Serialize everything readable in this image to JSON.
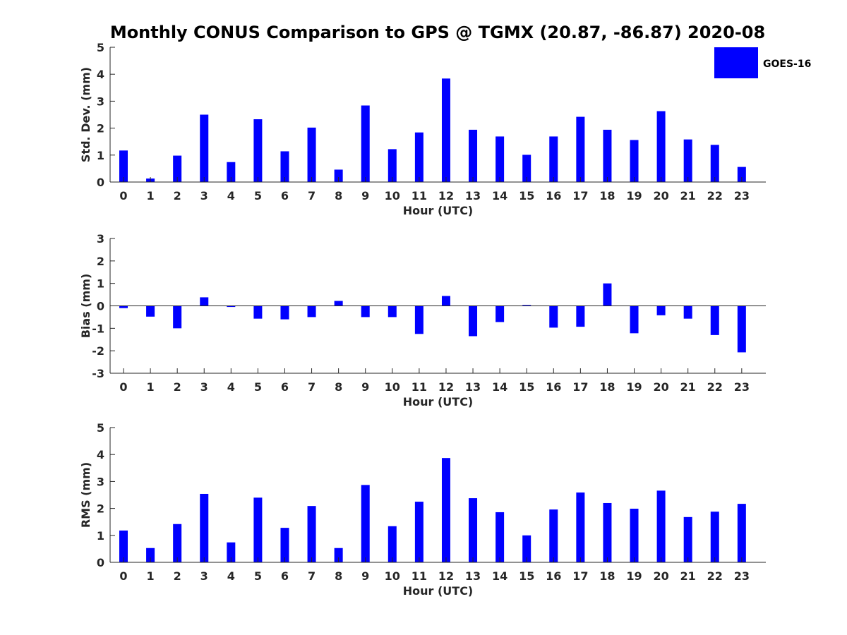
{
  "title": "Monthly CONUS Comparison to GPS @ TGMX (20.87, -86.87) 2020-08",
  "legend": {
    "label": "GOES-16",
    "color": "#0000ff",
    "placement": "top-right"
  },
  "chart_data": [
    {
      "type": "bar",
      "categories": [
        "0",
        "1",
        "2",
        "3",
        "4",
        "5",
        "6",
        "7",
        "8",
        "9",
        "10",
        "11",
        "12",
        "13",
        "14",
        "15",
        "16",
        "17",
        "18",
        "19",
        "20",
        "21",
        "22",
        "23"
      ],
      "values": [
        1.17,
        0.13,
        0.98,
        2.5,
        0.74,
        2.33,
        1.14,
        2.02,
        0.46,
        2.84,
        1.22,
        1.84,
        3.84,
        1.94,
        1.69,
        1.01,
        1.69,
        2.42,
        1.94,
        1.56,
        2.63,
        1.58,
        1.38,
        0.56
      ],
      "xlabel": "Hour (UTC)",
      "ylabel": "Std. Dev. (mm)",
      "ylim": [
        0,
        5
      ],
      "yticks": [
        "0",
        "1",
        "2",
        "3",
        "4",
        "5"
      ],
      "grid": false
    },
    {
      "type": "bar",
      "categories": [
        "0",
        "1",
        "2",
        "3",
        "4",
        "5",
        "6",
        "7",
        "8",
        "9",
        "10",
        "11",
        "12",
        "13",
        "14",
        "15",
        "16",
        "17",
        "18",
        "19",
        "20",
        "21",
        "22",
        "23"
      ],
      "values": [
        -0.1,
        -0.48,
        -1.0,
        0.38,
        -0.05,
        -0.57,
        -0.6,
        -0.5,
        0.22,
        -0.5,
        -0.5,
        -1.25,
        0.44,
        -1.35,
        -0.72,
        0.04,
        -0.97,
        -0.93,
        1.0,
        -1.22,
        -0.42,
        -0.57,
        -1.3,
        -2.07
      ],
      "xlabel": "Hour (UTC)",
      "ylabel": "Bias (mm)",
      "ylim": [
        -3,
        3
      ],
      "yticks": [
        "-3",
        "-2",
        "-1",
        "0",
        "1",
        "2",
        "3"
      ],
      "grid": false
    },
    {
      "type": "bar",
      "categories": [
        "0",
        "1",
        "2",
        "3",
        "4",
        "5",
        "6",
        "7",
        "8",
        "9",
        "10",
        "11",
        "12",
        "13",
        "14",
        "15",
        "16",
        "17",
        "18",
        "19",
        "20",
        "21",
        "22",
        "23"
      ],
      "values": [
        1.18,
        0.53,
        1.42,
        2.54,
        0.74,
        2.4,
        1.28,
        2.09,
        0.53,
        2.87,
        1.34,
        2.25,
        3.87,
        2.38,
        1.86,
        1.0,
        1.96,
        2.59,
        2.2,
        1.99,
        2.66,
        1.68,
        1.88,
        2.17
      ],
      "xlabel": "Hour (UTC)",
      "ylabel": "RMS (mm)",
      "ylim": [
        0,
        5
      ],
      "yticks": [
        "0",
        "1",
        "2",
        "3",
        "4",
        "5"
      ],
      "grid": false
    }
  ]
}
